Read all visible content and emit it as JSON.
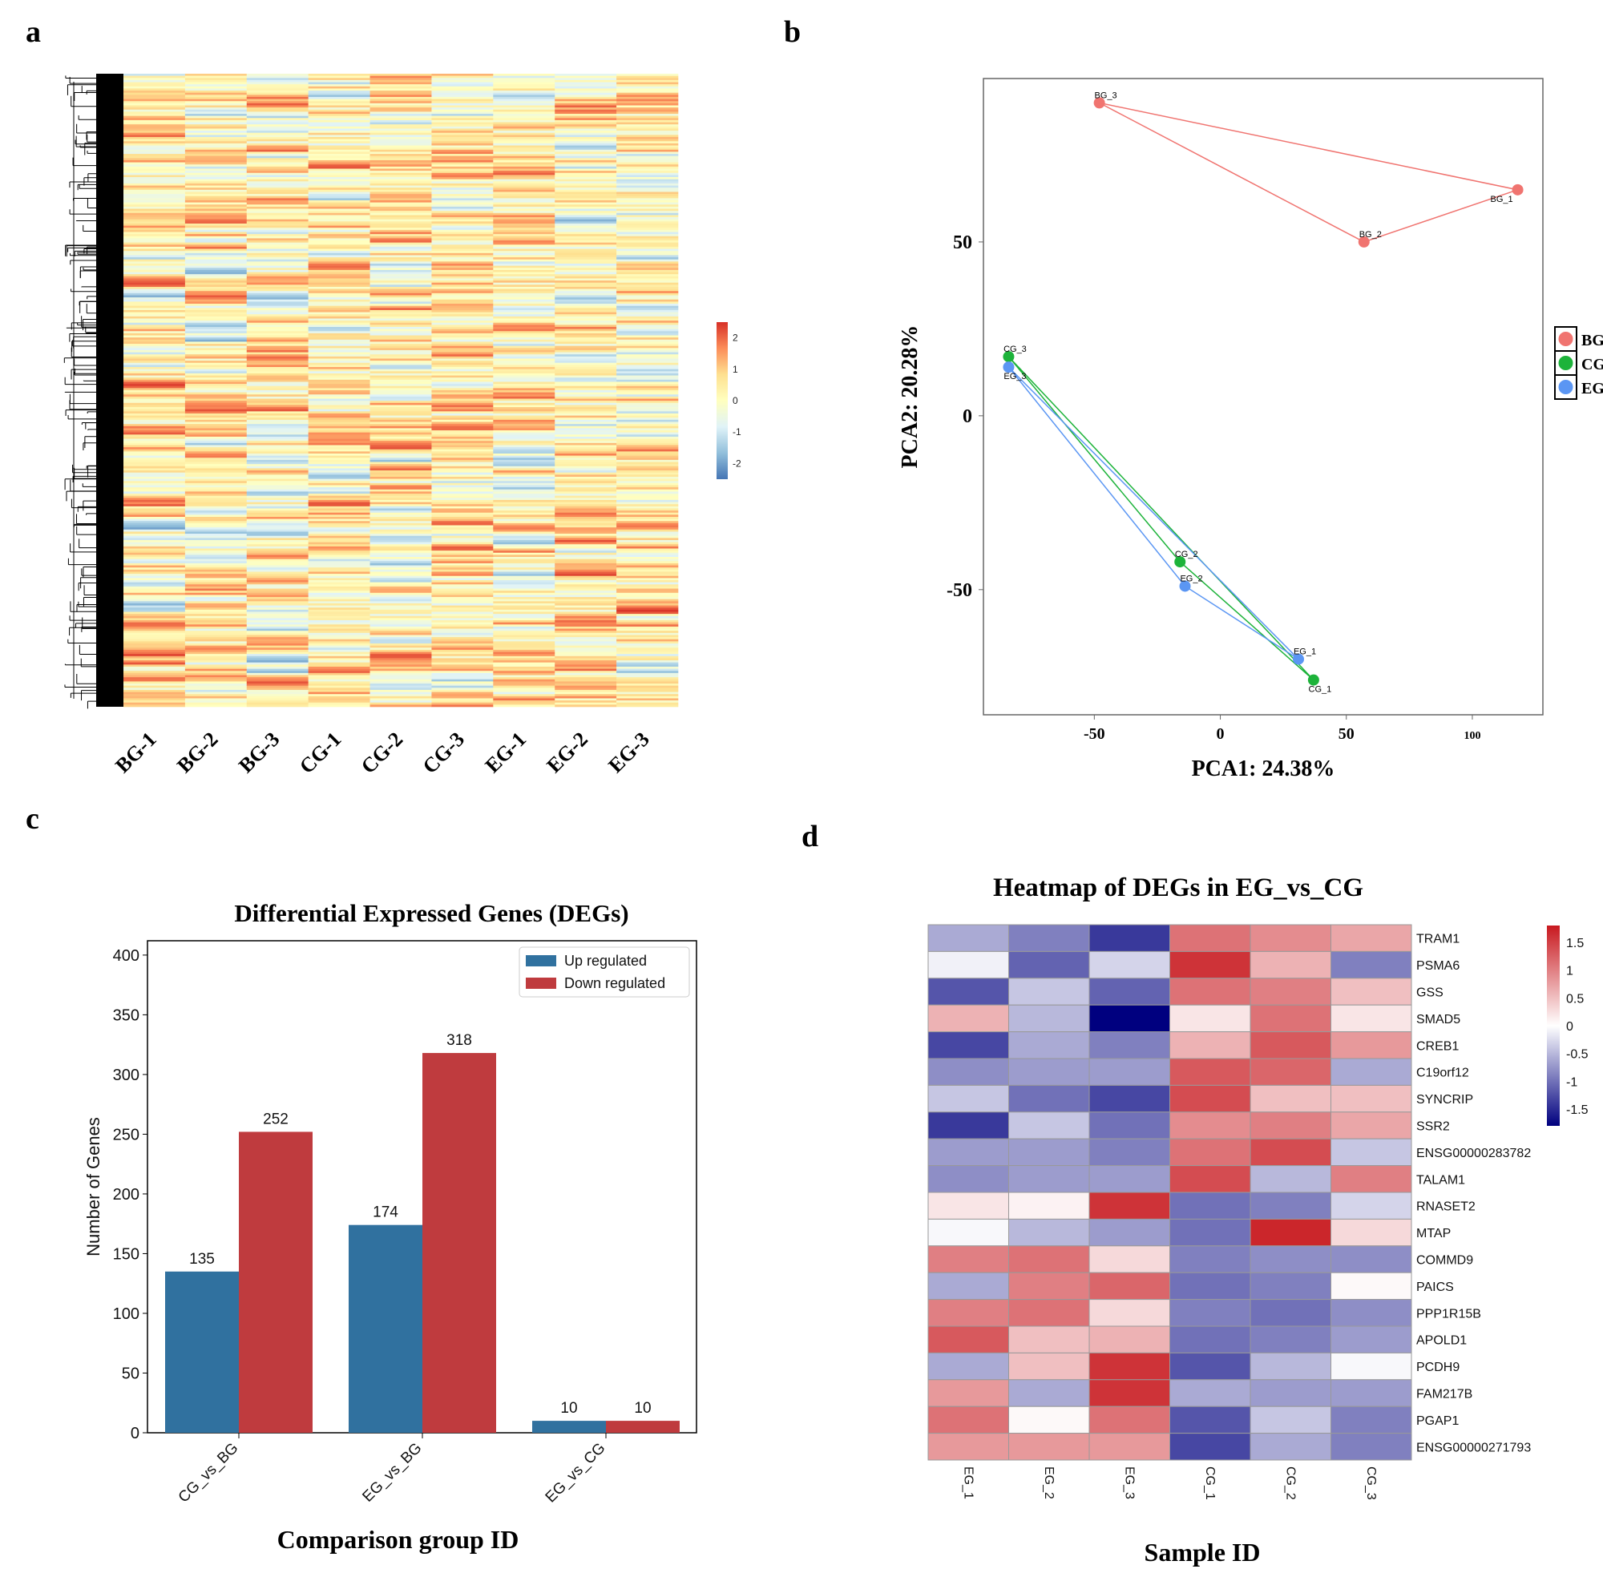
{
  "panels": {
    "a": "a",
    "b": "b",
    "c": "c",
    "d": "d"
  },
  "chart_data": [
    {
      "id": "a",
      "type": "heatmap",
      "title": "",
      "columns": [
        "BG-1",
        "BG-2",
        "BG-3",
        "CG-1",
        "CG-2",
        "CG-3",
        "EG-1",
        "EG-2",
        "EG-3"
      ],
      "row_labels_shown": false,
      "dendrogram": "rows",
      "colorbar": {
        "min": -2.5,
        "max": 2.5,
        "ticks": [
          2,
          1,
          0,
          -1,
          -2
        ],
        "colormap": "RdYlBu_r",
        "colors": [
          "#4575b4",
          "#91bfdb",
          "#e0f3f8",
          "#ffffbf",
          "#fee090",
          "#fc8d59",
          "#d73027"
        ]
      }
    },
    {
      "id": "b",
      "type": "scatter",
      "title": "",
      "xlabel": "PCA1: 24.38%",
      "ylabel": "PCA2: 20.28%",
      "xlim": [
        -94,
        128
      ],
      "ylim": [
        -86,
        97
      ],
      "xticks": [
        -50,
        0,
        50,
        100
      ],
      "yticks": [
        50,
        0,
        -50
      ],
      "legend": {
        "position": "right",
        "entries": [
          {
            "name": "BG",
            "color": "#f07470"
          },
          {
            "name": "CG",
            "color": "#1db33a"
          },
          {
            "name": "EG",
            "color": "#5b96f3"
          }
        ]
      },
      "series": [
        {
          "name": "BG",
          "color": "#f07470",
          "points": [
            {
              "label": "BG_1",
              "x": 118,
              "y": 65
            },
            {
              "label": "BG_2",
              "x": 57,
              "y": 50
            },
            {
              "label": "BG_3",
              "x": -48,
              "y": 90
            }
          ]
        },
        {
          "name": "CG",
          "color": "#1db33a",
          "points": [
            {
              "label": "CG_1",
              "x": 37,
              "y": -76
            },
            {
              "label": "CG_2",
              "x": -16,
              "y": -42
            },
            {
              "label": "CG_3",
              "x": -84,
              "y": 17
            }
          ]
        },
        {
          "name": "EG",
          "color": "#5b96f3",
          "points": [
            {
              "label": "EG_1",
              "x": 31,
              "y": -70
            },
            {
              "label": "EG_2",
              "x": -14,
              "y": -49
            },
            {
              "label": "EG_3",
              "x": -84,
              "y": 14
            }
          ]
        }
      ]
    },
    {
      "id": "c",
      "type": "bar",
      "title": "Differential Expressed Genes (DEGs)",
      "xlabel": "Comparison group ID",
      "ylabel": "Number of Genes",
      "ylim": [
        0,
        412
      ],
      "yticks": [
        0,
        50,
        100,
        150,
        200,
        250,
        300,
        350,
        400
      ],
      "categories": [
        "CG_vs_BG",
        "EG_vs_BG",
        "EG_vs_CG"
      ],
      "legend": {
        "position": "top-right"
      },
      "series": [
        {
          "name": "Up regulated",
          "color": "#30719f",
          "values": [
            135,
            174,
            10
          ]
        },
        {
          "name": "Down regulated",
          "color": "#bf3b3e",
          "values": [
            252,
            318,
            10
          ]
        }
      ]
    },
    {
      "id": "d",
      "type": "heatmap",
      "title": "Heatmap of DEGs in EG_vs_CG",
      "xlabel": "Sample ID",
      "columns": [
        "EG_1",
        "EG_2",
        "EG_3",
        "CG_1",
        "CG_2",
        "CG_3"
      ],
      "rows": [
        "TRAM1",
        "PSMA6",
        "GSS",
        "SMAD5",
        "CREB1",
        "C19orf12",
        "SYNCRIP",
        "SSR2",
        "ENSG00000283782",
        "TALAM1",
        "RNASET2",
        "MTAP",
        "COMMD9",
        "PAICS",
        "PPP1R15B",
        "APOLD1",
        "PCDH9",
        "FAM217B",
        "PGAP1",
        "ENSG00000271793"
      ],
      "values": [
        [
          -0.6,
          -0.9,
          -1.4,
          1.1,
          0.9,
          0.7
        ],
        [
          -0.1,
          -1.1,
          -0.3,
          1.6,
          0.6,
          -0.9
        ],
        [
          -1.2,
          -0.4,
          -1.1,
          1.1,
          1.0,
          0.5
        ],
        [
          0.6,
          -0.5,
          -1.8,
          0.2,
          1.1,
          0.2
        ],
        [
          -1.3,
          -0.6,
          -0.9,
          0.6,
          1.3,
          0.8
        ],
        [
          -0.8,
          -0.7,
          -0.7,
          1.3,
          1.2,
          -0.6
        ],
        [
          -0.4,
          -1.0,
          -1.3,
          1.4,
          0.5,
          0.5
        ],
        [
          -1.4,
          -0.4,
          -1.0,
          0.9,
          1.0,
          0.7
        ],
        [
          -0.7,
          -0.7,
          -0.9,
          1.1,
          1.4,
          -0.4
        ],
        [
          -0.8,
          -0.7,
          -0.7,
          1.4,
          -0.5,
          1.0
        ],
        [
          0.2,
          0.1,
          1.6,
          -1.0,
          -0.9,
          -0.3
        ],
        [
          -0.05,
          -0.5,
          -0.7,
          -1.0,
          1.7,
          0.3
        ],
        [
          1.0,
          1.1,
          0.3,
          -0.9,
          -0.8,
          -0.8
        ],
        [
          -0.6,
          1.0,
          1.2,
          -1.0,
          -0.9,
          0.05
        ],
        [
          1.0,
          1.1,
          0.3,
          -0.9,
          -1.0,
          -0.8
        ],
        [
          1.3,
          0.5,
          0.6,
          -1.0,
          -0.9,
          -0.7
        ],
        [
          -0.6,
          0.5,
          1.6,
          -1.2,
          -0.5,
          -0.05
        ],
        [
          0.8,
          -0.6,
          1.6,
          -0.6,
          -0.7,
          -0.7
        ],
        [
          1.1,
          0.05,
          1.1,
          -1.2,
          -0.4,
          -0.9
        ],
        [
          0.8,
          0.8,
          0.8,
          -1.3,
          -0.6,
          -0.9
        ]
      ],
      "colorbar": {
        "min": -1.8,
        "max": 1.8,
        "ticks": [
          1.5,
          1,
          0.5,
          0,
          -0.5,
          -1,
          -1.5
        ],
        "colors": [
          "#00007f",
          "#ffffff",
          "#c8191f"
        ]
      }
    }
  ]
}
